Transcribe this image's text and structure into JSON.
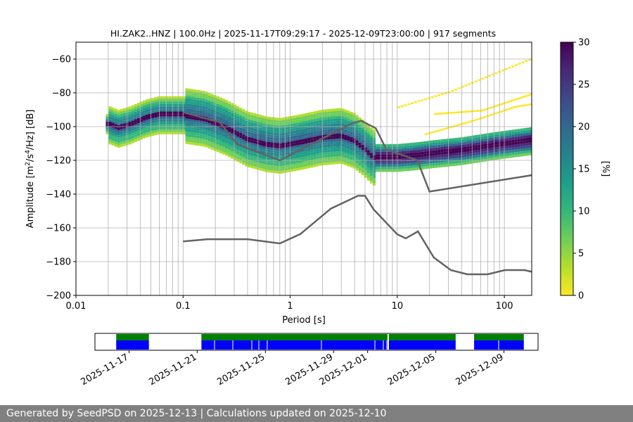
{
  "chart_data": [
    {
      "type": "heatmap",
      "title": "HI.ZAK2..HNZ | 100.0Hz | 2025-11-17T09:29:17 - 2025-12-09T23:00:00 | 917 segments",
      "xlabel": "Period [s]",
      "ylabel_parts": {
        "prefix": "Amplitude [m",
        "sup1": "2",
        "mid": "/s",
        "sup2": "4",
        "suffix": "/Hz] [dB]"
      },
      "x_scale": "log",
      "xlim": [
        0.01,
        180
      ],
      "ylim": [
        -200,
        -50
      ],
      "x_ticks": [
        {
          "v": 0.01,
          "label": "0.01"
        },
        {
          "v": 0.1,
          "label": "0.1"
        },
        {
          "v": 1,
          "label": "1"
        },
        {
          "v": 10,
          "label": "10"
        },
        {
          "v": 100,
          "label": "100"
        }
      ],
      "y_ticks": [
        {
          "v": -60,
          "label": "−60"
        },
        {
          "v": -80,
          "label": "−80"
        },
        {
          "v": -100,
          "label": "−100"
        },
        {
          "v": -120,
          "label": "−120"
        },
        {
          "v": -140,
          "label": "−140"
        },
        {
          "v": -160,
          "label": "−160"
        },
        {
          "v": -180,
          "label": "−180"
        },
        {
          "v": -200,
          "label": "−200"
        }
      ],
      "vertical_grid_periods": [
        0.02,
        0.03,
        0.04,
        0.05,
        0.06,
        0.07,
        0.08,
        0.09,
        0.1,
        0.2,
        0.3,
        0.4,
        0.5,
        0.6,
        0.7,
        0.8,
        0.9,
        1,
        2,
        3,
        4,
        5,
        6,
        7,
        8,
        9,
        10,
        20,
        30,
        40,
        50,
        60,
        70,
        80,
        90,
        100
      ],
      "horizontal_grid": true,
      "colormap": "viridis_r",
      "colors": [
        "#fde725",
        "#b5de2b",
        "#6ece58",
        "#35b779",
        "#1f9e89",
        "#26828e",
        "#31688e",
        "#3e4989",
        "#482878",
        "#440154"
      ],
      "main_band": [
        [
          0.019,
          -98
        ],
        [
          0.025,
          -101
        ],
        [
          0.032,
          -99
        ],
        [
          0.045,
          -95
        ],
        [
          0.06,
          -93
        ],
        [
          0.1,
          -93
        ],
        [
          0.16,
          -95
        ],
        [
          0.25,
          -100
        ],
        [
          0.4,
          -107
        ],
        [
          0.6,
          -110
        ],
        [
          0.8,
          -111
        ],
        [
          1.2,
          -109
        ],
        [
          2,
          -106
        ],
        [
          3,
          -105
        ],
        [
          4,
          -108
        ],
        [
          5,
          -113
        ],
        [
          6,
          -118
        ],
        [
          10,
          -118
        ],
        [
          15,
          -117
        ],
        [
          20,
          -116
        ],
        [
          40,
          -114
        ],
        [
          80,
          -111
        ],
        [
          180,
          -108
        ]
      ],
      "noise_models": {
        "high": [
          [
            0.1,
            -91.5
          ],
          [
            0.22,
            -97.4
          ],
          [
            0.32,
            -110.5
          ],
          [
            0.8,
            -120
          ],
          [
            3.8,
            -98
          ],
          [
            4.6,
            -96.5
          ],
          [
            6.3,
            -101
          ],
          [
            7.9,
            -113.5
          ],
          [
            15.4,
            -120
          ],
          [
            20,
            -138.5
          ],
          [
            180,
            -128.8
          ]
        ],
        "low": [
          [
            0.1,
            -168
          ],
          [
            0.17,
            -166.7
          ],
          [
            0.4,
            -166.7
          ],
          [
            0.8,
            -169.2
          ],
          [
            1.24,
            -163.7
          ],
          [
            2.4,
            -148.6
          ],
          [
            4.3,
            -141
          ],
          [
            5,
            -141
          ],
          [
            6,
            -149
          ],
          [
            10,
            -163.8
          ],
          [
            12,
            -166.2
          ],
          [
            15.6,
            -162.1
          ],
          [
            21.9,
            -177.5
          ],
          [
            31.6,
            -185
          ],
          [
            45,
            -187.5
          ],
          [
            70,
            -187.5
          ],
          [
            101,
            -185
          ],
          [
            154,
            -185
          ],
          [
            180,
            -186
          ]
        ]
      },
      "colorbar": {
        "label": "[%]",
        "range": [
          0,
          30
        ],
        "ticks": [
          "0",
          "5",
          "10",
          "15",
          "20",
          "25",
          "30"
        ]
      }
    },
    {
      "type": "timeline",
      "dates": [
        "2025-11-17",
        "2025-11-21",
        "2025-11-25",
        "2025-11-29",
        "2025-12-01",
        "2025-12-05",
        "2025-12-09"
      ],
      "range": [
        "2025-11-15",
        "2025-12-11"
      ],
      "segments": [
        [
          "2025-11-16",
          "2025-11-18"
        ],
        [
          "2025-11-21",
          "2025-12-02"
        ],
        [
          "2025-12-02",
          "2025-12-06"
        ],
        [
          "2025-12-07",
          "2025-12-10"
        ]
      ],
      "top_color": "#007f00",
      "bottom_color": "#0000ff"
    }
  ],
  "footer": "Generated by SeedPSD on 2025-12-13 | Calculations updated on 2025-12-10"
}
